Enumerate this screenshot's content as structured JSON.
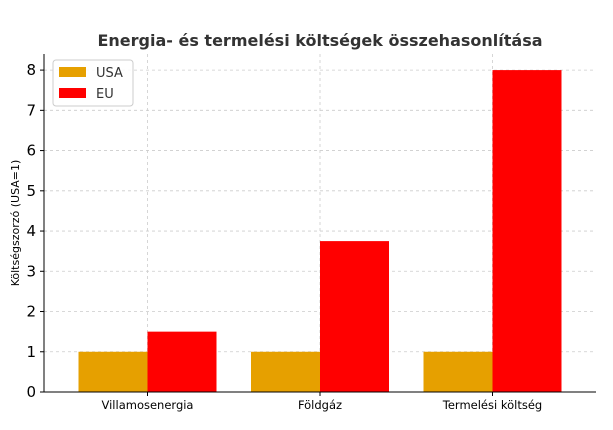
{
  "chart_data": {
    "type": "bar",
    "title": "Energia- és termelési költségek összehasonlítása",
    "xlabel": "",
    "ylabel": "Költségszorzó (USA=1)",
    "categories": [
      "Villamosenergia",
      "Földgáz",
      "Termelési költség"
    ],
    "series": [
      {
        "name": "USA",
        "values": [
          1,
          1,
          1
        ],
        "color": "#e6a000"
      },
      {
        "name": "EU",
        "values": [
          1.5,
          3.75,
          8
        ],
        "color": "#ff0000"
      }
    ],
    "ylim": [
      0,
      8.4
    ],
    "yticks": [
      0,
      1,
      2,
      3,
      4,
      5,
      6,
      7,
      8
    ],
    "grid": true,
    "legend": "top-left"
  }
}
